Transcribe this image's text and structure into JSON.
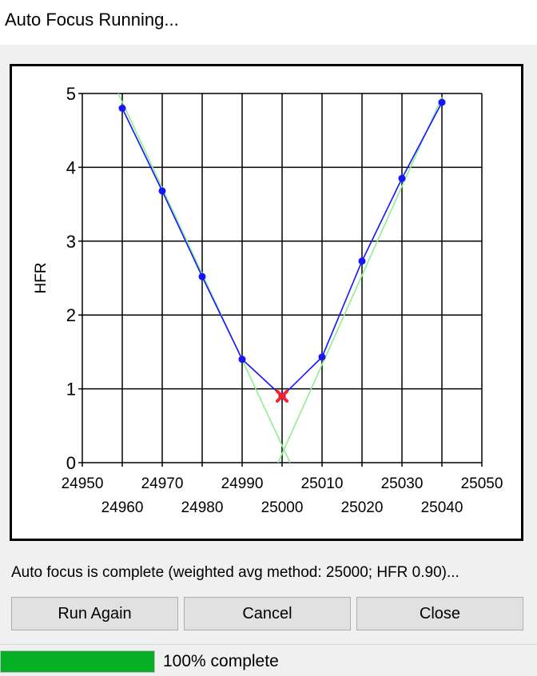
{
  "window": {
    "title": "Auto Focus Running..."
  },
  "chart_data": {
    "type": "line",
    "ylabel": "HFR",
    "xlim": [
      24950,
      25050
    ],
    "ylim": [
      0,
      5
    ],
    "x_ticks_upper": [
      24950,
      24970,
      24990,
      25010,
      25030,
      25050
    ],
    "x_ticks_lower": [
      24960,
      24980,
      25000,
      25020,
      25040
    ],
    "y_ticks": [
      0,
      1,
      2,
      3,
      4,
      5
    ],
    "grid": true,
    "series": [
      {
        "color": "#1515ff",
        "points": [
          {
            "x": 24960,
            "y": 4.8
          },
          {
            "x": 24970,
            "y": 3.68
          },
          {
            "x": 24980,
            "y": 2.52
          },
          {
            "x": 24990,
            "y": 1.4
          },
          {
            "x": 25000,
            "y": 0.9
          },
          {
            "x": 25010,
            "y": 1.43
          },
          {
            "x": 25020,
            "y": 2.73
          },
          {
            "x": 25030,
            "y": 3.85
          },
          {
            "x": 25040,
            "y": 4.88
          }
        ]
      }
    ],
    "fit_lines": [
      {
        "color": "#90ee90",
        "from": {
          "x": 24959,
          "y": 5.0
        },
        "to": {
          "x": 25002,
          "y": 0
        }
      },
      {
        "color": "#90ee90",
        "from": {
          "x": 24999,
          "y": 0
        },
        "to": {
          "x": 25040,
          "y": 4.95
        }
      }
    ],
    "focus_point": {
      "x": 25000,
      "y": 0.9,
      "color": "#ff2020",
      "marker": "x"
    }
  },
  "status": {
    "message": "Auto focus is complete (weighted avg method: 25000; HFR 0.90)..."
  },
  "buttons": {
    "run_again": "Run Again",
    "cancel": "Cancel",
    "close": "Close"
  },
  "progress": {
    "percent": 100,
    "label": "100% complete",
    "color": "#06b025"
  }
}
